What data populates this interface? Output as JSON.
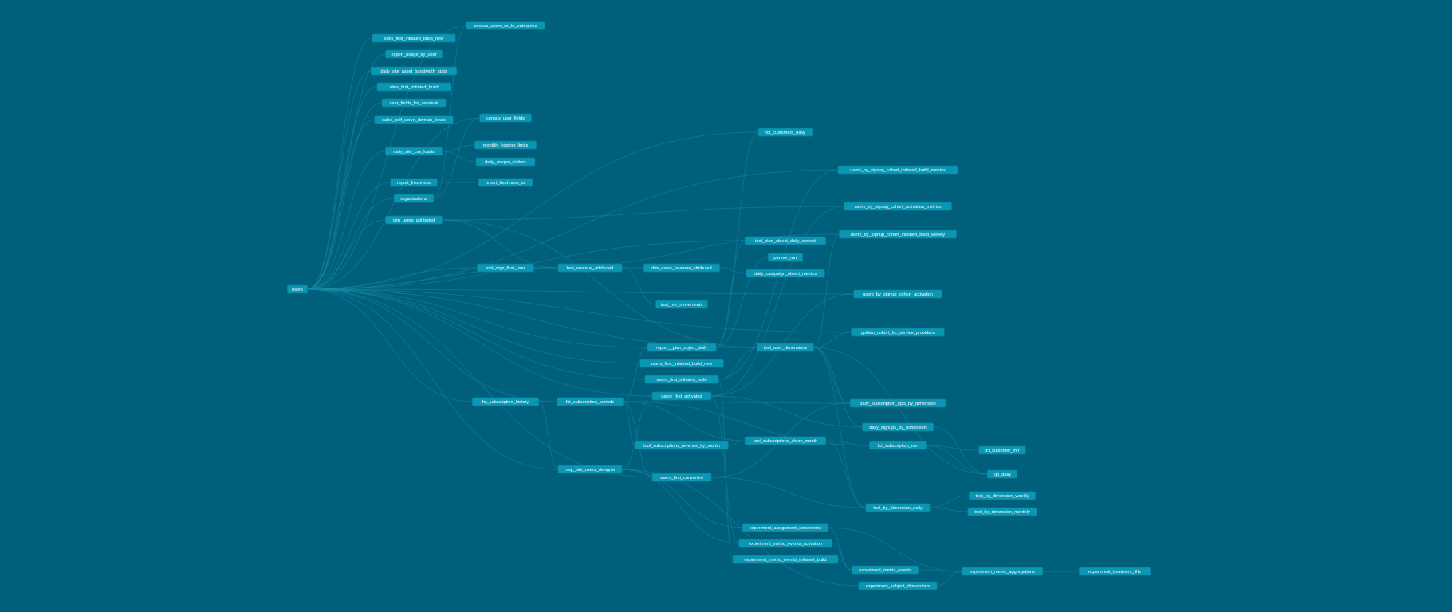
{
  "colors": {
    "background": "#00607c",
    "node": "#0b96b3",
    "edge": "#1a8fa8",
    "text": "#ffffff"
  },
  "nodes": [
    "users",
    "sites_first_initiated_build_new",
    "export_usage_by_user",
    "daily_site_asset_bandwidth_stats",
    "sites_first_initiated_build",
    "user_fields_for_zendesk",
    "sales_self_serve_domain_leads",
    "daily_site_css_loads",
    "report_freshness",
    "organizations",
    "dim_users_attributed",
    "census_users_ss_to_enterprise",
    "census_user_fields",
    "monthly_hosting_limits",
    "daily_unique_visitors",
    "report_freshness_ss",
    "tool_orgs_first_user",
    "fct_subscription_history",
    "tool_revenue_attributed",
    "fct_subscription_periods",
    "map_site_users_designer",
    "dim_users_revenue_attributed",
    "tool_mrr_movements",
    "report__plan_object_daily",
    "users_first_initiated_build_new",
    "users_first_initiated_build",
    "users_first_activated",
    "tool_subscriptions_revenue_by_month",
    "users_first_converted",
    "fct_customers_daily",
    "tool_plan_object_daily_current",
    "partner_mrr",
    "daily_campaign_object_metrics",
    "tool_user_dimensions",
    "tool_subscriptions_churn_month",
    "experiment_assignment_dimensions",
    "experiment_metric_events_activation",
    "experiment_metric_events_initiated_build",
    "users_by_signup_cohort_initiated_build_metrics",
    "users_by_signup_cohort_activation_metrics",
    "users_by_signup_cohort_initiated_build_weekly",
    "users_by_signup_cohort_activation",
    "golden_cohort_for_service_providers",
    "daily_subscription_kpis_by_dimension",
    "daily_signups_by_dimension",
    "fct_subscription_mrr",
    "tool_by_dimension_daily",
    "experiment_metric_events",
    "experiment_subject_dimensions",
    "fct_customer_mrr",
    "kpi_daily",
    "tool_by_dimension_weekly",
    "tool_by_dimension_monthly",
    "experiment_metric_aggregations",
    "experiment_treatment_lifts"
  ],
  "edges": [
    [
      "users",
      "sites_first_initiated_build_new"
    ],
    [
      "users",
      "export_usage_by_user"
    ],
    [
      "users",
      "daily_site_asset_bandwidth_stats"
    ],
    [
      "users",
      "sites_first_initiated_build"
    ],
    [
      "users",
      "user_fields_for_zendesk"
    ],
    [
      "users",
      "sales_self_serve_domain_leads"
    ],
    [
      "users",
      "daily_site_css_loads"
    ],
    [
      "users",
      "report_freshness"
    ],
    [
      "users",
      "organizations"
    ],
    [
      "users",
      "dim_users_attributed"
    ],
    [
      "users",
      "census_users_ss_to_enterprise"
    ],
    [
      "users",
      "census_user_fields"
    ],
    [
      "users",
      "tool_orgs_first_user"
    ],
    [
      "users",
      "fct_subscription_history"
    ],
    [
      "users",
      "tool_revenue_attributed"
    ],
    [
      "users",
      "fct_subscription_periods"
    ],
    [
      "users",
      "map_site_users_designer"
    ],
    [
      "users",
      "report__plan_object_daily"
    ],
    [
      "users",
      "users_first_initiated_build_new"
    ],
    [
      "users",
      "users_first_initiated_build"
    ],
    [
      "users",
      "users_first_activated"
    ],
    [
      "users",
      "users_first_converted"
    ],
    [
      "users",
      "tool_user_dimensions"
    ],
    [
      "users",
      "fct_customers_daily"
    ],
    [
      "users",
      "users_by_signup_cohort_activation"
    ],
    [
      "users",
      "golden_cohort_for_service_providers"
    ],
    [
      "users",
      "users_by_signup_cohort_initiated_build_metrics"
    ],
    [
      "users",
      "tool_plan_object_daily_current"
    ],
    [
      "daily_site_css_loads",
      "monthly_hosting_limits"
    ],
    [
      "daily_site_css_loads",
      "daily_unique_visitors"
    ],
    [
      "report_freshness",
      "report_freshness_ss"
    ],
    [
      "organizations",
      "census_user_fields"
    ],
    [
      "organizations",
      "census_users_ss_to_enterprise"
    ],
    [
      "dim_users_attributed",
      "tool_revenue_attributed"
    ],
    [
      "dim_users_attributed",
      "users_by_signup_cohort_activation_metrics"
    ],
    [
      "dim_users_attributed",
      "tool_user_dimensions"
    ],
    [
      "tool_orgs_first_user",
      "tool_revenue_attributed"
    ],
    [
      "tool_orgs_first_user",
      "users_by_signup_cohort_initiated_build_weekly"
    ],
    [
      "fct_subscription_history",
      "fct_subscription_periods"
    ],
    [
      "fct_subscription_history",
      "map_site_users_designer"
    ],
    [
      "tool_revenue_attributed",
      "dim_users_revenue_attributed"
    ],
    [
      "tool_revenue_attributed",
      "tool_mrr_movements"
    ],
    [
      "dim_users_revenue_attributed",
      "daily_campaign_object_metrics"
    ],
    [
      "fct_subscription_periods",
      "report__plan_object_daily"
    ],
    [
      "fct_subscription_periods",
      "tool_subscriptions_revenue_by_month"
    ],
    [
      "fct_subscription_periods",
      "users_first_converted"
    ],
    [
      "fct_subscription_periods",
      "tool_subscriptions_churn_month"
    ],
    [
      "fct_subscription_periods",
      "daily_subscription_kpis_by_dimension"
    ],
    [
      "fct_subscription_periods",
      "fct_subscription_mrr"
    ],
    [
      "map_site_users_designer",
      "users_first_activated"
    ],
    [
      "map_site_users_designer",
      "experiment_assignment_dimensions"
    ],
    [
      "map_site_users_designer",
      "experiment_metric_events_activation"
    ],
    [
      "map_site_users_designer",
      "experiment_subject_dimensions"
    ],
    [
      "report__plan_object_daily",
      "tool_plan_object_daily_current"
    ],
    [
      "report__plan_object_daily",
      "partner_mrr"
    ],
    [
      "report__plan_object_daily",
      "fct_customers_daily"
    ],
    [
      "report__plan_object_daily",
      "tool_user_dimensions"
    ],
    [
      "users_first_initiated_build",
      "users_by_signup_cohort_initiated_build_metrics"
    ],
    [
      "users_first_initiated_build",
      "experiment_metric_events_initiated_build"
    ],
    [
      "users_first_initiated_build",
      "tool_user_dimensions"
    ],
    [
      "users_first_activated",
      "users_by_signup_cohort_activation_metrics"
    ],
    [
      "users_first_activated",
      "users_by_signup_cohort_activation"
    ],
    [
      "users_first_activated",
      "experiment_metric_events_activation"
    ],
    [
      "users_first_activated",
      "daily_signups_by_dimension"
    ],
    [
      "users_first_converted",
      "tool_by_dimension_daily"
    ],
    [
      "users_first_converted",
      "daily_subscription_kpis_by_dimension"
    ],
    [
      "tool_subscriptions_revenue_by_month",
      "tool_subscriptions_churn_month"
    ],
    [
      "tool_subscriptions_churn_month",
      "fct_subscription_mrr"
    ],
    [
      "tool_subscriptions_churn_month",
      "tool_by_dimension_daily"
    ],
    [
      "tool_user_dimensions",
      "daily_subscription_kpis_by_dimension"
    ],
    [
      "tool_user_dimensions",
      "daily_signups_by_dimension"
    ],
    [
      "tool_user_dimensions",
      "tool_by_dimension_daily"
    ],
    [
      "tool_user_dimensions",
      "golden_cohort_for_service_providers"
    ],
    [
      "tool_user_dimensions",
      "users_by_signup_cohort_initiated_build_weekly"
    ],
    [
      "tool_user_dimensions",
      "kpi_daily"
    ],
    [
      "fct_subscription_mrr",
      "fct_customer_mrr"
    ],
    [
      "fct_subscription_mrr",
      "kpi_daily"
    ],
    [
      "daily_signups_by_dimension",
      "kpi_daily"
    ],
    [
      "tool_by_dimension_daily",
      "tool_by_dimension_weekly"
    ],
    [
      "tool_by_dimension_daily",
      "tool_by_dimension_monthly"
    ],
    [
      "experiment_assignment_dimensions",
      "experiment_metric_aggregations"
    ],
    [
      "experiment_assignment_dimensions",
      "experiment_metric_events"
    ],
    [
      "experiment_metric_events_activation",
      "experiment_metric_events"
    ],
    [
      "experiment_metric_events_initiated_build",
      "experiment_metric_events"
    ],
    [
      "experiment_metric_events",
      "experiment_metric_aggregations"
    ],
    [
      "experiment_subject_dimensions",
      "experiment_metric_aggregations"
    ],
    [
      "experiment_metric_aggregations",
      "experiment_treatment_lifts"
    ]
  ]
}
